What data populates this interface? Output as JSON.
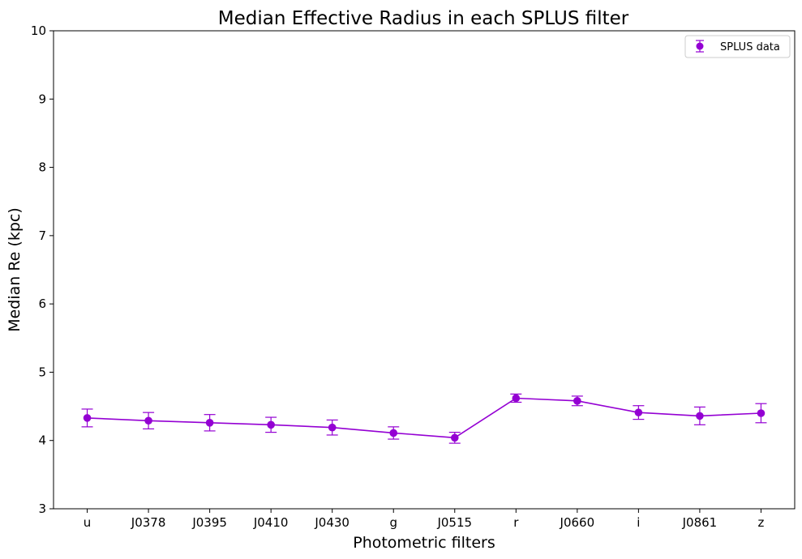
{
  "chart_data": {
    "type": "line",
    "title": "Median Effective Radius in each SPLUS filter",
    "xlabel": "Photometric filters",
    "ylabel": "Median Re (kpc)",
    "categories": [
      "u",
      "J0378",
      "J0395",
      "J0410",
      "J0430",
      "g",
      "J0515",
      "r",
      "J0660",
      "i",
      "J0861",
      "z"
    ],
    "ylim": [
      3,
      10
    ],
    "yticks": [
      3,
      4,
      5,
      6,
      7,
      8,
      9,
      10
    ],
    "grid": false,
    "legend_position": "top-right",
    "series": [
      {
        "name": "SPLUS data",
        "color": "#9400d3",
        "values": [
          4.33,
          4.29,
          4.26,
          4.23,
          4.19,
          4.11,
          4.04,
          4.62,
          4.58,
          4.41,
          4.36,
          4.4
        ],
        "errors": [
          0.13,
          0.12,
          0.12,
          0.11,
          0.11,
          0.09,
          0.08,
          0.06,
          0.07,
          0.1,
          0.13,
          0.14
        ]
      }
    ]
  }
}
